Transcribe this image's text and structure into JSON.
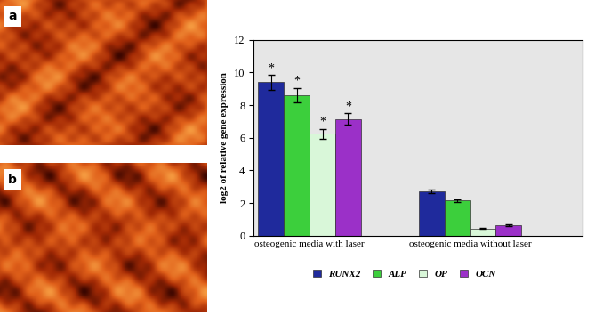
{
  "panels": [
    "a",
    "b"
  ],
  "chart_data": {
    "type": "bar",
    "y_label": "log2 of relative gene expression",
    "categories": [
      "osteogenic media with laser",
      "osteogenic media without laser"
    ],
    "series": [
      {
        "name": "RUNX2",
        "color": "#1f2a9c",
        "values": [
          9.4,
          2.7
        ],
        "errors": [
          0.45,
          0.1
        ],
        "significance": [
          "*",
          null
        ]
      },
      {
        "name": "ALP",
        "color": "#3ccf3c",
        "values": [
          8.6,
          2.15
        ],
        "errors": [
          0.45,
          0.1
        ],
        "significance": [
          "*",
          null
        ]
      },
      {
        "name": "OP",
        "color": "#d9f7d9",
        "values": [
          6.25,
          0.45
        ],
        "errors": [
          0.3,
          0.03
        ],
        "significance": [
          "*",
          null
        ]
      },
      {
        "name": "OCN",
        "color": "#9b30c8",
        "values": [
          7.15,
          0.65
        ],
        "errors": [
          0.35,
          0.05
        ],
        "significance": [
          "*",
          null
        ]
      }
    ],
    "ylim": [
      0,
      12
    ],
    "yticks": [
      0,
      2,
      4,
      6,
      8,
      10,
      12
    ],
    "legend": "lower center"
  }
}
